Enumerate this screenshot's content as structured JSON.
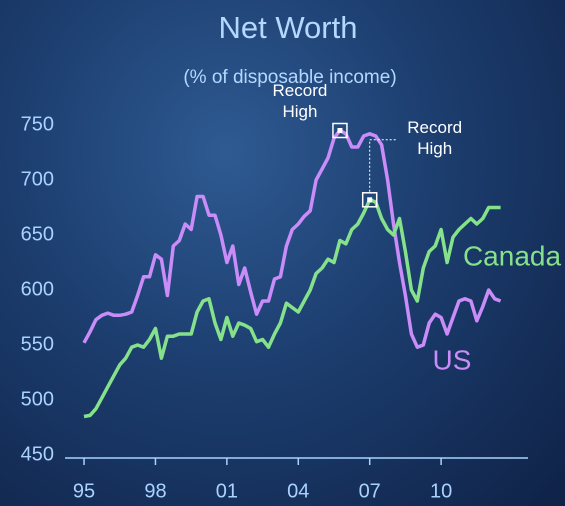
{
  "chart_data": {
    "type": "line",
    "title": "Net Worth",
    "subtitle": "(% of disposable income)",
    "x": [
      1995,
      1995.25,
      1995.5,
      1995.75,
      1996,
      1996.25,
      1996.5,
      1996.75,
      1997,
      1997.25,
      1997.5,
      1997.75,
      1998,
      1998.25,
      1998.5,
      1998.75,
      1999,
      1999.25,
      1999.5,
      1999.75,
      2000,
      2000.25,
      2000.5,
      2000.75,
      2001,
      2001.25,
      2001.5,
      2001.75,
      2002,
      2002.25,
      2002.5,
      2002.75,
      2003,
      2003.25,
      2003.5,
      2003.75,
      2004,
      2004.25,
      2004.5,
      2004.75,
      2005,
      2005.25,
      2005.5,
      2005.75,
      2006,
      2006.25,
      2006.5,
      2006.75,
      2007,
      2007.25,
      2007.5,
      2007.75,
      2008,
      2008.25,
      2008.5,
      2008.75,
      2009,
      2009.25,
      2009.5,
      2009.75,
      2010,
      2010.25,
      2010.5,
      2010.75,
      2011,
      2011.25,
      2011.5,
      2011.75,
      2012,
      2012.25,
      2012.5
    ],
    "series": [
      {
        "name": "US",
        "color": "#c98cf8",
        "values": [
          552,
          562,
          573,
          577,
          579,
          577,
          577,
          578,
          580,
          595,
          612,
          612,
          632,
          628,
          595,
          640,
          645,
          660,
          655,
          685,
          685,
          668,
          668,
          650,
          625,
          640,
          605,
          620,
          598,
          578,
          590,
          590,
          610,
          612,
          640,
          655,
          660,
          667,
          672,
          700,
          710,
          720,
          738,
          745,
          742,
          730,
          730,
          740,
          742,
          740,
          732,
          700,
          660,
          625,
          595,
          560,
          548,
          550,
          570,
          578,
          575,
          560,
          575,
          590,
          592,
          590,
          572,
          585,
          600,
          592,
          590
        ]
      },
      {
        "name": "Canada",
        "color": "#86e28a",
        "values": [
          485,
          486,
          492,
          502,
          512,
          522,
          532,
          538,
          548,
          550,
          548,
          555,
          565,
          538,
          558,
          558,
          560,
          560,
          560,
          580,
          590,
          592,
          570,
          555,
          575,
          558,
          570,
          568,
          565,
          553,
          555,
          548,
          560,
          570,
          588,
          584,
          580,
          590,
          600,
          615,
          620,
          628,
          625,
          645,
          642,
          655,
          660,
          670,
          682,
          680,
          665,
          655,
          650,
          665,
          635,
          600,
          590,
          620,
          635,
          640,
          655,
          625,
          648,
          655,
          660,
          665,
          660,
          665,
          675,
          675,
          675
        ]
      }
    ],
    "xlim": [
      1994.2,
      2013.65
    ],
    "xticks": [
      {
        "value": 1995,
        "label": "95"
      },
      {
        "value": 1998,
        "label": "98"
      },
      {
        "value": 2001,
        "label": "01"
      },
      {
        "value": 2004,
        "label": "04"
      },
      {
        "value": 2007,
        "label": "07"
      },
      {
        "value": 2010,
        "label": "10"
      }
    ],
    "ylim": [
      450,
      750
    ],
    "yticks": [
      450,
      500,
      550,
      600,
      650,
      700,
      750
    ],
    "annotations": [
      {
        "text": "Record High",
        "x": 2005.75,
        "y": 745
      },
      {
        "text": "Record High",
        "x": 2007,
        "y": 682
      }
    ]
  }
}
